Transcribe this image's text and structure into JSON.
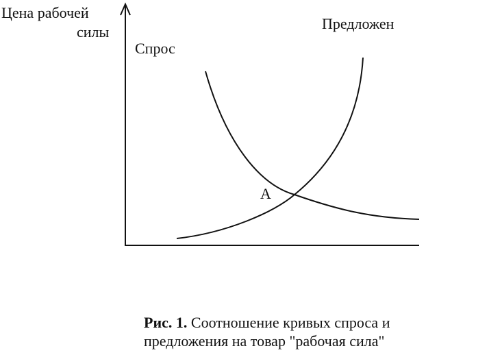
{
  "axis_label": [
    "Цена рабочей",
    "силы"
  ],
  "demand_label": "Спрос",
  "supply_label": "Предложен",
  "point_label": "А",
  "caption": {
    "number": "Рис. 1.",
    "lines": [
      "Соотношение кривых спроса и",
      "предложения на товар \"рабочая сила\""
    ]
  }
}
